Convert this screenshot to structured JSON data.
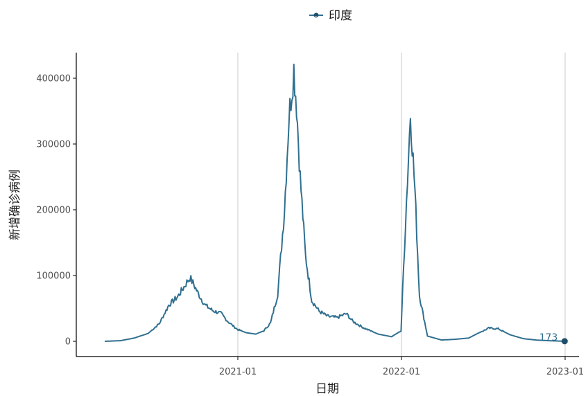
{
  "legend": {
    "label": "印度",
    "marker": "a"
  },
  "colors": {
    "series": "#2f6f8f",
    "end_point": "#1d4f6b",
    "grid": "#c8c8c8",
    "axis": "#000000"
  },
  "chart_data": {
    "type": "line",
    "xlabel": "日期",
    "ylabel": "新增确诊病例",
    "x_ticks": [
      "2021-01",
      "2022-01",
      "2023-01"
    ],
    "y_ticks": [
      "0",
      "100000",
      "200000",
      "300000",
      "400000"
    ],
    "ylim": [
      0,
      420000
    ],
    "xlim": [
      "2020-03-01",
      "2023-01-10"
    ],
    "grid": "vertical major lines at x ticks",
    "legend_position": "top",
    "series": [
      {
        "name": "印度",
        "points": [
          [
            "2020-03-10",
            0
          ],
          [
            "2020-04-15",
            1000
          ],
          [
            "2020-05-15",
            5000
          ],
          [
            "2020-06-15",
            12000
          ],
          [
            "2020-07-10",
            27000
          ],
          [
            "2020-07-31",
            55000
          ],
          [
            "2020-08-20",
            68000
          ],
          [
            "2020-09-05",
            85000
          ],
          [
            "2020-09-16",
            97000
          ],
          [
            "2020-09-25",
            86000
          ],
          [
            "2020-10-05",
            72000
          ],
          [
            "2020-10-20",
            55000
          ],
          [
            "2020-11-05",
            47000
          ],
          [
            "2020-11-25",
            42000
          ],
          [
            "2020-12-10",
            30000
          ],
          [
            "2020-12-31",
            18000
          ],
          [
            "2021-01-20",
            13000
          ],
          [
            "2021-02-10",
            11000
          ],
          [
            "2021-02-28",
            16000
          ],
          [
            "2021-03-15",
            28000
          ],
          [
            "2021-03-31",
            72000
          ],
          [
            "2021-04-15",
            200000
          ],
          [
            "2021-04-25",
            340000
          ],
          [
            "2021-05-06",
            414000
          ],
          [
            "2021-05-12",
            360000
          ],
          [
            "2021-05-20",
            250000
          ],
          [
            "2021-06-01",
            130000
          ],
          [
            "2021-06-15",
            62000
          ],
          [
            "2021-07-01",
            46000
          ],
          [
            "2021-07-20",
            38000
          ],
          [
            "2021-08-10",
            36000
          ],
          [
            "2021-08-31",
            42000
          ],
          [
            "2021-09-15",
            30000
          ],
          [
            "2021-10-10",
            20000
          ],
          [
            "2021-11-10",
            11000
          ],
          [
            "2021-12-10",
            7000
          ],
          [
            "2021-12-31",
            16000
          ],
          [
            "2022-01-10",
            180000
          ],
          [
            "2022-01-21",
            347000
          ],
          [
            "2022-01-31",
            230000
          ],
          [
            "2022-02-10",
            70000
          ],
          [
            "2022-02-28",
            8000
          ],
          [
            "2022-03-31",
            2000
          ],
          [
            "2022-04-30",
            3000
          ],
          [
            "2022-05-31",
            5000
          ],
          [
            "2022-06-20",
            12000
          ],
          [
            "2022-07-15",
            20000
          ],
          [
            "2022-08-05",
            19000
          ],
          [
            "2022-08-31",
            10000
          ],
          [
            "2022-09-30",
            4000
          ],
          [
            "2022-10-31",
            1800
          ],
          [
            "2022-11-30",
            800
          ],
          [
            "2022-12-31",
            173
          ]
        ]
      }
    ],
    "end_label": "173"
  }
}
